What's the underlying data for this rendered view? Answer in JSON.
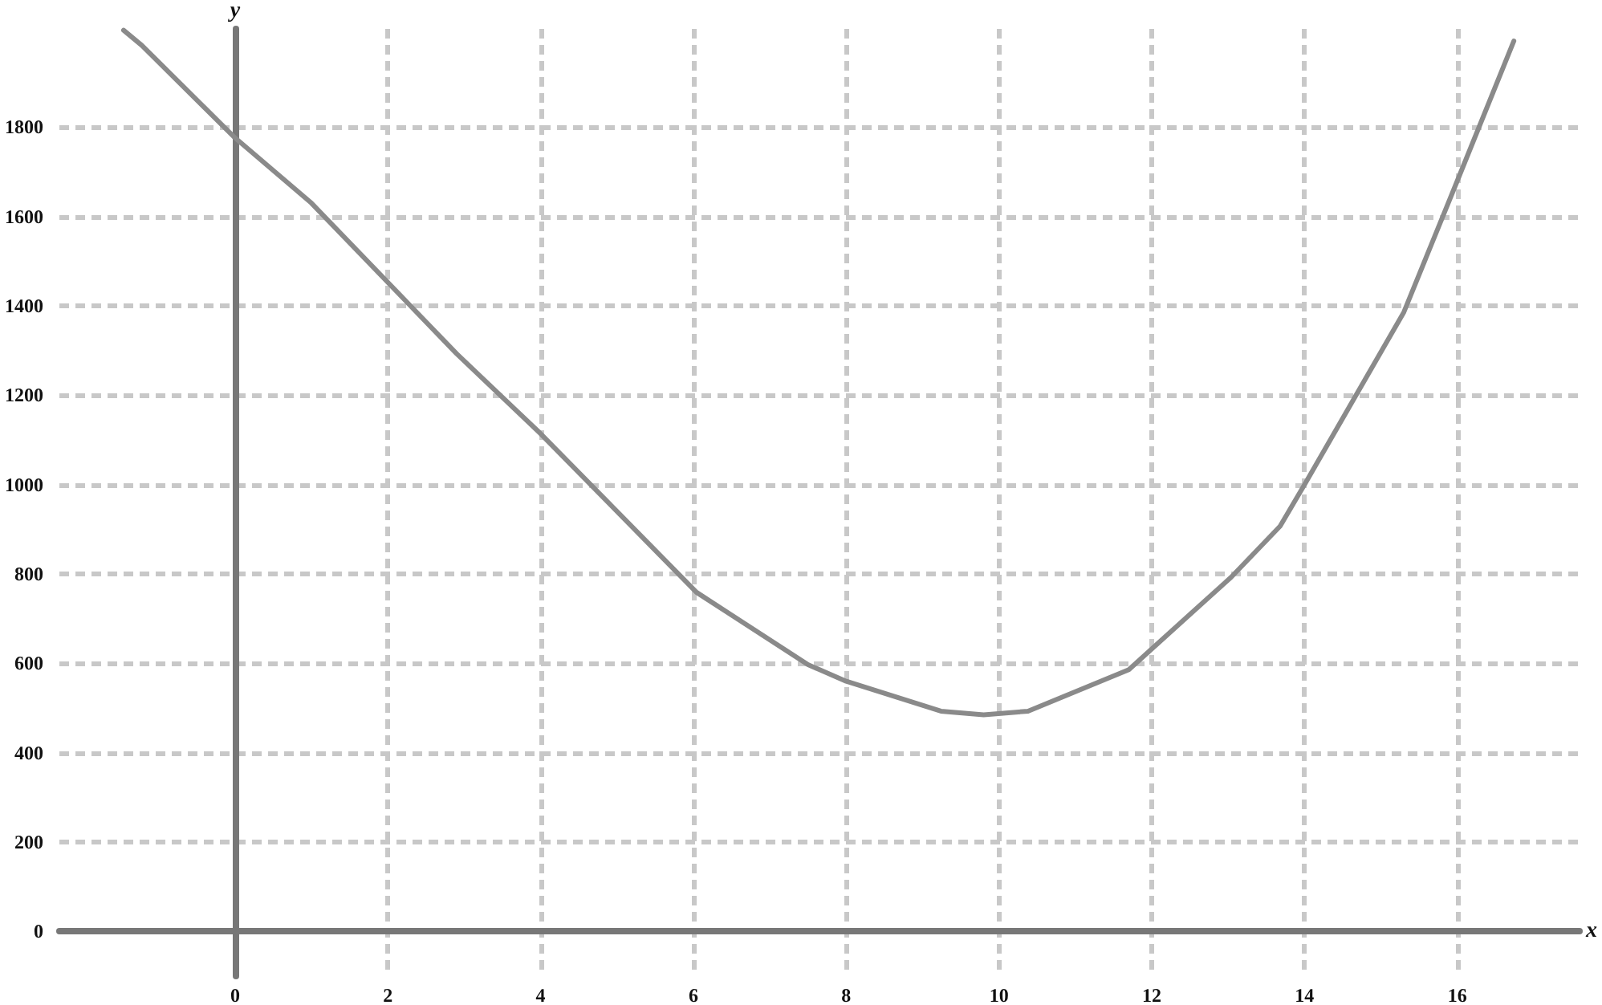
{
  "chart_data": {
    "type": "line",
    "xlabel": "x",
    "ylabel": "y",
    "x": [
      -1.46,
      -1.22,
      0,
      1,
      2.9,
      4,
      6.04,
      7.5,
      8,
      9.24,
      9.8,
      10.38,
      11.7,
      13.04,
      13.68,
      14,
      15.3,
      16,
      16.74
    ],
    "series": [
      {
        "color": "#8a8a8a",
        "values": [
          2017,
          1983,
          1776,
          1630,
          1293,
          1114,
          759,
          597,
          560,
          493,
          485,
          493,
          586,
          793,
          907,
          1000,
          1386,
          1680,
          1993
        ]
      }
    ],
    "xlim": [
      -2.3,
      17.6
    ],
    "ylim": [
      -100,
      2020
    ],
    "xticks": [
      0,
      2,
      4,
      6,
      8,
      10,
      12,
      14,
      16
    ],
    "yticks": [
      0,
      200,
      400,
      600,
      800,
      1000,
      1200,
      1400,
      1600,
      1800
    ],
    "grid": true,
    "marker": "none",
    "line_style": "solid"
  }
}
